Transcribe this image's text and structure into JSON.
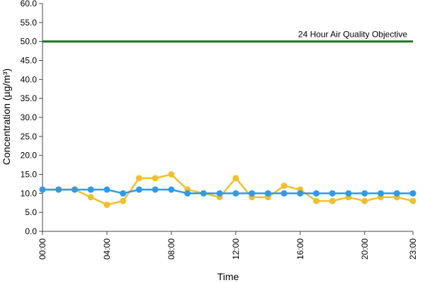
{
  "chart_data": {
    "type": "line",
    "xlabel": "Time",
    "ylabel": "Concentration (µg/m³)",
    "ylim": [
      0,
      60
    ],
    "y_ticks": [
      "0.0",
      "5.0",
      "10.0",
      "15.0",
      "20.0",
      "25.0",
      "30.0",
      "35.0",
      "40.0",
      "45.0",
      "50.0",
      "55.0",
      "60.0"
    ],
    "x": [
      "00:00",
      "01:00",
      "02:00",
      "03:00",
      "04:00",
      "05:00",
      "06:00",
      "07:00",
      "08:00",
      "09:00",
      "10:00",
      "11:00",
      "12:00",
      "13:00",
      "14:00",
      "15:00",
      "16:00",
      "17:00",
      "18:00",
      "19:00",
      "20:00",
      "21:00",
      "22:00",
      "23:00"
    ],
    "x_tick_labels": [
      "00:00",
      "04:00",
      "08:00",
      "12:00",
      "16:00",
      "20:00",
      "23:00"
    ],
    "series": [
      {
        "color": "#F0C030",
        "values": [
          11,
          11,
          11,
          9,
          7,
          8,
          14,
          14,
          15,
          11,
          10,
          9,
          14,
          9,
          9,
          12,
          11,
          8,
          8,
          9,
          8,
          9,
          9,
          8
        ]
      },
      {
        "color": "#2E9BEA",
        "values": [
          11,
          11,
          11,
          11,
          11,
          10,
          11,
          11,
          11,
          10,
          10,
          10,
          10,
          10,
          10,
          10,
          10,
          10,
          10,
          10,
          10,
          10,
          10,
          10
        ]
      }
    ],
    "reference_line": {
      "value": 50,
      "label": "24 Hour Air Quality Objective",
      "color": "#1E7A1E"
    },
    "grid": false,
    "legend": "none"
  }
}
